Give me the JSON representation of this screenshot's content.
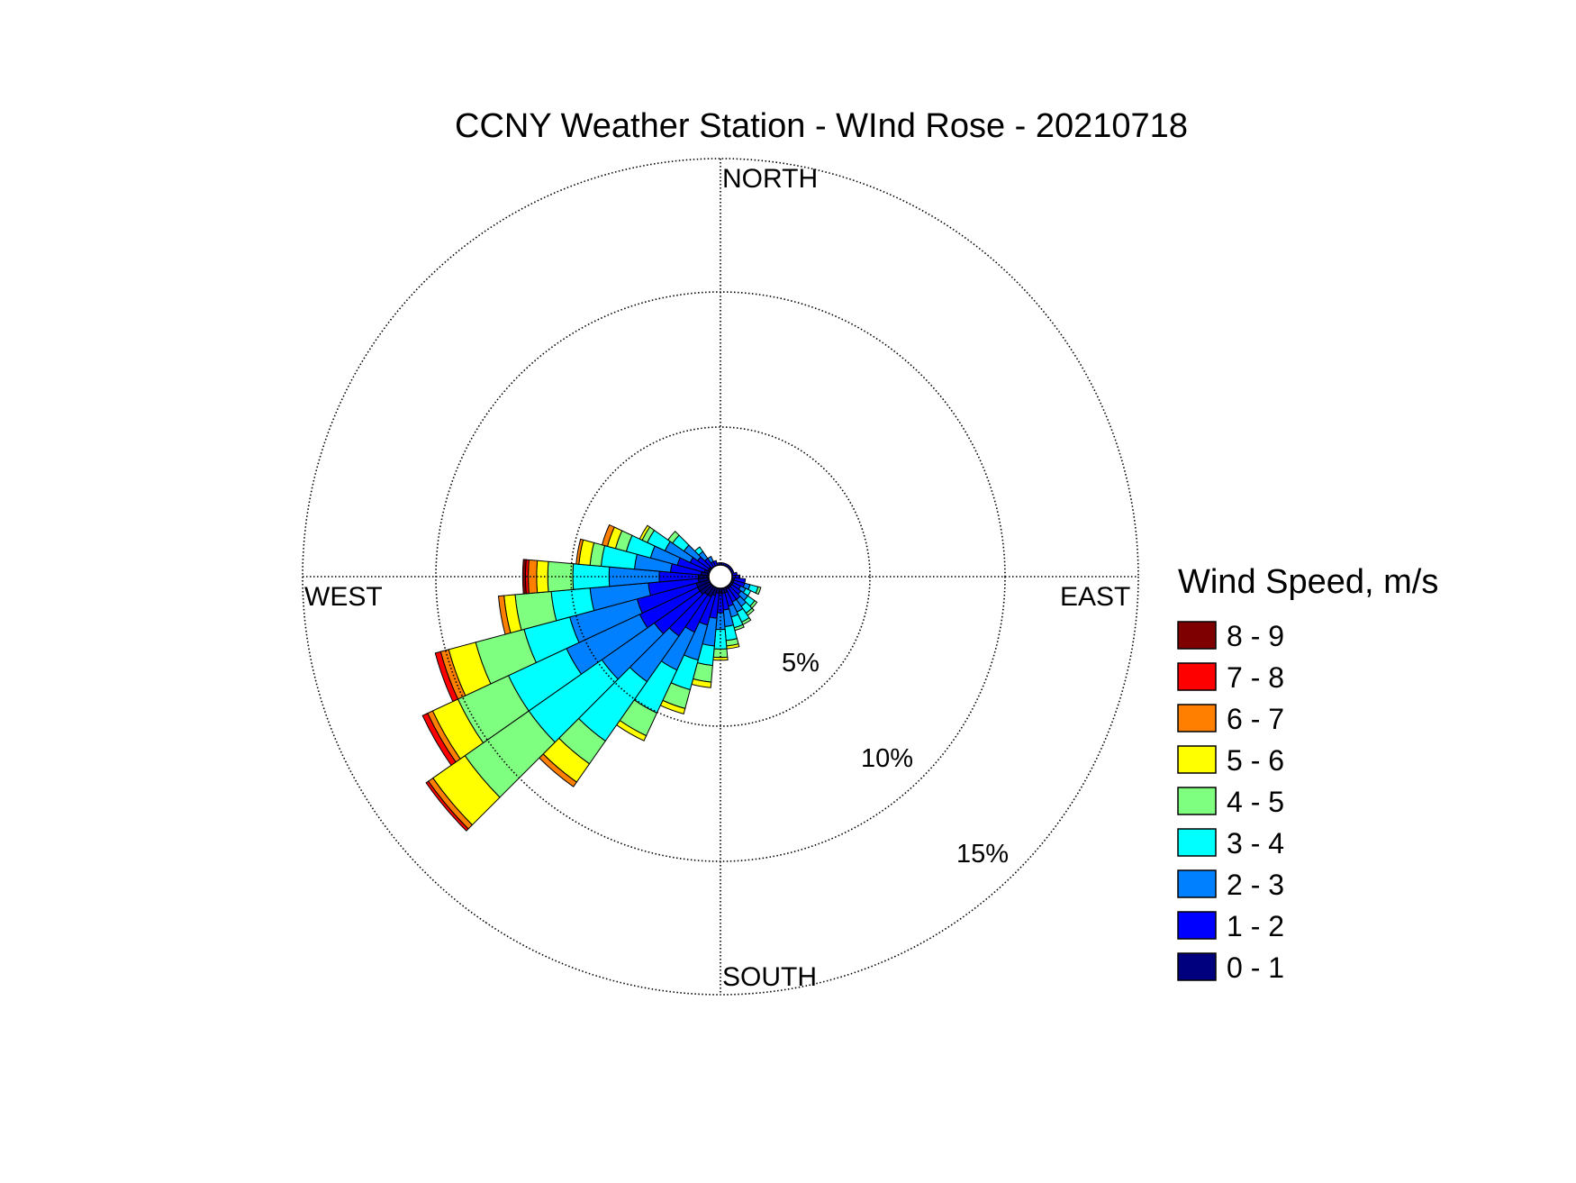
{
  "chart_data": {
    "type": "wind-rose",
    "title": "CCNY Weather Station - WInd Rose - 20210718",
    "directions": [
      "NORTH",
      "EAST",
      "SOUTH",
      "WEST"
    ],
    "ring_labels": [
      "5%",
      "10%",
      "15%"
    ],
    "rings": [
      5,
      10,
      15
    ],
    "rlim": [
      0,
      15
    ],
    "grid": true,
    "legend_position": "right",
    "legend": {
      "title": "Wind Speed, m/s",
      "bins": [
        {
          "label": "0 - 1",
          "color": "#00007f"
        },
        {
          "label": "1 - 2",
          "color": "#0000ff"
        },
        {
          "label": "2 - 3",
          "color": "#007fff"
        },
        {
          "label": "3 - 4",
          "color": "#00ffff"
        },
        {
          "label": "4 - 5",
          "color": "#7fff7f"
        },
        {
          "label": "5 - 6",
          "color": "#ffff00"
        },
        {
          "label": "6 - 7",
          "color": "#ff7f00"
        },
        {
          "label": "7 - 8",
          "color": "#ff0000"
        },
        {
          "label": "8 - 9",
          "color": "#7f0000"
        }
      ]
    },
    "sector_width_deg": 10,
    "sectors": [
      {
        "dir": 0,
        "cumulative": [
          0.4,
          0.5
        ]
      },
      {
        "dir": 10,
        "cumulative": [
          0.4,
          0.5
        ]
      },
      {
        "dir": 20,
        "cumulative": [
          0.4,
          0.5
        ]
      },
      {
        "dir": 30,
        "cumulative": [
          0.4,
          0.5
        ]
      },
      {
        "dir": 40,
        "cumulative": [
          0.4,
          0.5
        ]
      },
      {
        "dir": 50,
        "cumulative": [
          0.4,
          0.5
        ]
      },
      {
        "dir": 60,
        "cumulative": [
          0.4,
          0.5
        ]
      },
      {
        "dir": 70,
        "cumulative": [
          0.4,
          0.5
        ]
      },
      {
        "dir": 80,
        "cumulative": [
          0.4,
          0.6
        ]
      },
      {
        "dir": 90,
        "cumulative": [
          0.4,
          0.7
        ]
      },
      {
        "dir": 100,
        "cumulative": [
          0.5,
          0.9
        ]
      },
      {
        "dir": 110,
        "cumulative": [
          0.5,
          0.9,
          1.1,
          1.4,
          1.5
        ]
      },
      {
        "dir": 120,
        "cumulative": [
          0.5,
          0.8,
          1.0,
          1.2
        ]
      },
      {
        "dir": 130,
        "cumulative": [
          0.5,
          0.9,
          1.2,
          1.5,
          1.6
        ]
      },
      {
        "dir": 140,
        "cumulative": [
          0.5,
          1.0,
          1.3,
          1.6,
          1.7
        ]
      },
      {
        "dir": 150,
        "cumulative": [
          0.5,
          1.0,
          1.4,
          1.8,
          1.9
        ]
      },
      {
        "dir": 160,
        "cumulative": [
          0.6,
          1.1,
          1.5,
          1.9,
          2.0
        ]
      },
      {
        "dir": 170,
        "cumulative": [
          0.6,
          1.2,
          1.8,
          2.3,
          2.5,
          2.6
        ]
      },
      {
        "dir": 180,
        "cumulative": [
          0.6,
          1.3,
          1.9,
          2.6,
          2.9,
          3.0
        ]
      },
      {
        "dir": 190,
        "cumulative": [
          0.6,
          1.5,
          2.5,
          3.2,
          3.8,
          4.0
        ]
      },
      {
        "dir": 200,
        "cumulative": [
          0.7,
          1.8,
          3.1,
          4.2,
          4.9,
          5.1
        ]
      },
      {
        "dir": 210,
        "cumulative": [
          0.8,
          2.2,
          3.7,
          5.4,
          6.3,
          6.5
        ]
      },
      {
        "dir": 220,
        "cumulative": [
          0.8,
          2.6,
          4.6,
          7.2,
          8.2,
          9.0,
          9.2
        ]
      },
      {
        "dir": 230,
        "cumulative": [
          0.9,
          2.9,
          5.2,
          8.4,
          11.2,
          12.6,
          12.8,
          12.9
        ]
      },
      {
        "dir": 240,
        "cumulative": [
          0.9,
          3.2,
          6.1,
          8.4,
          10.4,
          11.4,
          11.6,
          11.8
        ]
      },
      {
        "dir": 250,
        "cumulative": [
          0.9,
          3.1,
          5.6,
          7.3,
          9.1,
          10.1,
          10.4,
          10.6
        ]
      },
      {
        "dir": 260,
        "cumulative": [
          0.8,
          2.6,
          4.7,
          6.1,
          7.4,
          7.8,
          8.0
        ]
      },
      {
        "dir": 270,
        "cumulative": [
          0.8,
          2.2,
          4.0,
          5.3,
          6.2,
          6.6,
          6.9,
          7.0,
          7.1
        ]
      },
      {
        "dir": 280,
        "cumulative": [
          0.7,
          1.8,
          3.1,
          4.3,
          4.7,
          5.1,
          5.2
        ]
      },
      {
        "dir": 290,
        "cumulative": [
          0.6,
          1.6,
          2.6,
          3.5,
          3.9,
          4.2,
          4.4
        ]
      },
      {
        "dir": 300,
        "cumulative": [
          0.5,
          1.2,
          2.2,
          2.9,
          3.1,
          3.2
        ]
      },
      {
        "dir": 310,
        "cumulative": [
          0.5,
          1.0,
          1.6,
          2.1,
          2.3
        ]
      },
      {
        "dir": 320,
        "cumulative": [
          0.4,
          0.8,
          1.1,
          1.3
        ]
      },
      {
        "dir": 330,
        "cumulative": [
          0.4,
          0.6,
          0.8
        ]
      },
      {
        "dir": 340,
        "cumulative": [
          0.4,
          0.6
        ]
      },
      {
        "dir": 350,
        "cumulative": [
          0.4,
          0.5
        ]
      }
    ]
  }
}
